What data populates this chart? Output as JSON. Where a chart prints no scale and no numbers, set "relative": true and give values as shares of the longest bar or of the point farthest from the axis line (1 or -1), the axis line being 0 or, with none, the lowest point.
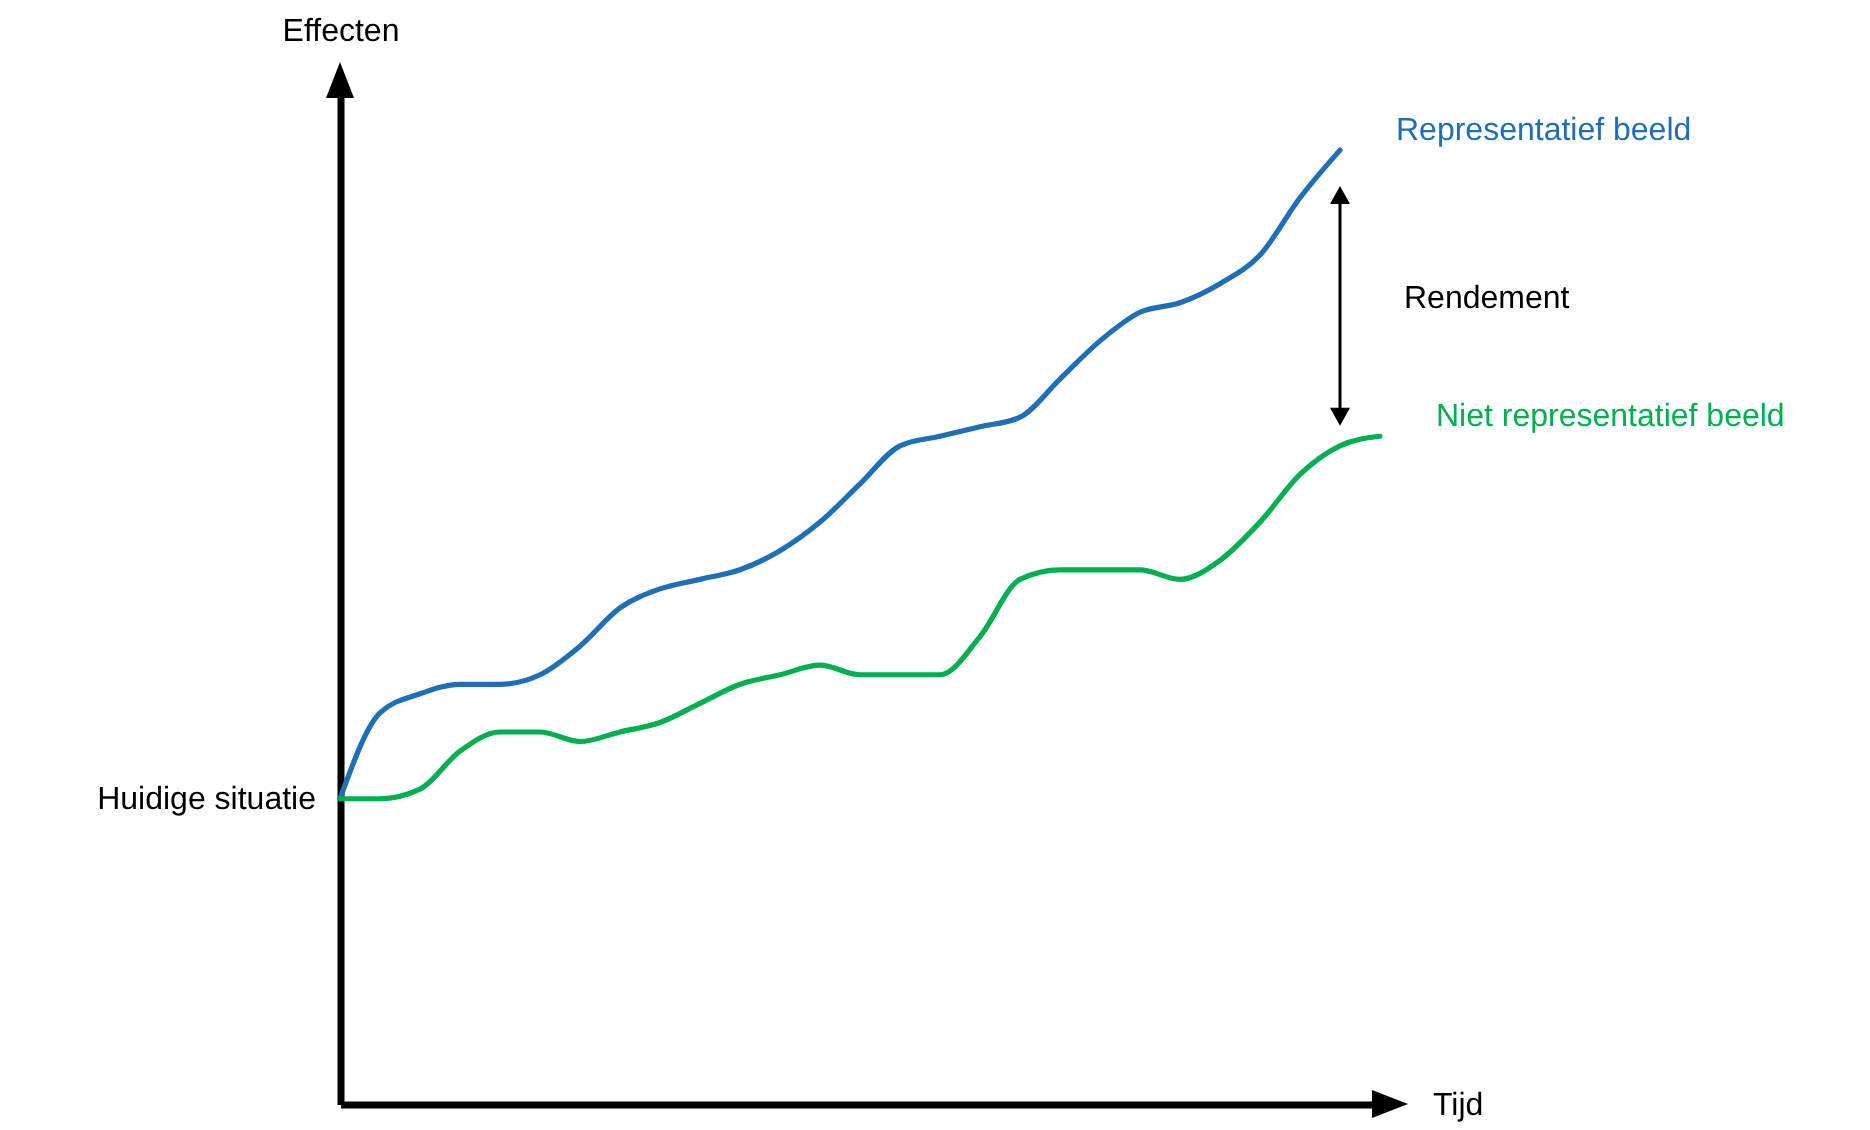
{
  "chart_data": {
    "type": "line",
    "relative": true,
    "xlabel": "Tijd",
    "ylabel": "Effecten",
    "categories": [
      null,
      null,
      null,
      null,
      null,
      null,
      null,
      null,
      null,
      null,
      null,
      null,
      null,
      null,
      null,
      null,
      null,
      null,
      null,
      null,
      null,
      null,
      null,
      null,
      null,
      null,
      null
    ],
    "series": [
      {
        "name": "Representatief beeld",
        "color": "#1f6fb8",
        "values": [
          0.32,
          0.41,
          0.43,
          0.44,
          0.44,
          0.45,
          0.48,
          0.52,
          0.54,
          0.55,
          0.56,
          0.58,
          0.61,
          0.65,
          0.69,
          0.7,
          0.71,
          0.72,
          0.76,
          0.8,
          0.83,
          0.84,
          0.86,
          0.89,
          0.95,
          1.0,
          null
        ]
      },
      {
        "name": "Niet representatief beeld",
        "color": "#00b050",
        "values": [
          0.32,
          0.32,
          0.33,
          0.37,
          0.39,
          0.39,
          0.38,
          0.39,
          0.4,
          0.42,
          0.44,
          0.45,
          0.46,
          0.45,
          0.45,
          0.45,
          0.49,
          0.55,
          0.56,
          0.56,
          0.56,
          0.55,
          0.57,
          0.61,
          0.66,
          0.69,
          0.7
        ]
      }
    ],
    "annotations": [
      "Rendement",
      "Huidige situatie"
    ]
  }
}
